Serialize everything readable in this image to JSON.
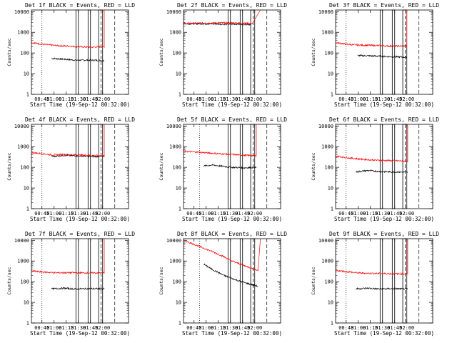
{
  "figure_title": "",
  "colors": {
    "events": "#000000",
    "lld": "#ff0000",
    "axes": "#000000",
    "background": "#ffffff"
  },
  "legend_text": "BLACK = Events, RED = LLD",
  "chart_data": [
    {
      "type": "line",
      "detector": "1f",
      "title": "Det 1f BLACK = Events, RED = LLD",
      "xlabel": "Start Time (19-Sep-12 00:32:00)",
      "ylabel": "Counts/sec",
      "xticks": [
        "00:45",
        "01:00",
        "01:15",
        "01:30",
        "01:45",
        "02:00"
      ],
      "yticks": [
        "1",
        "10",
        "100",
        "1000",
        "10000"
      ],
      "yscale": "log",
      "ylim": [
        1,
        12000
      ],
      "xlim_minutes": [
        0,
        120
      ],
      "series": [
        {
          "name": "Events",
          "color": "#000000",
          "start": 25,
          "end": 90,
          "points": [
            [
              25,
              55
            ],
            [
              40,
              50
            ],
            [
              55,
              45
            ],
            [
              70,
              45
            ],
            [
              85,
              44
            ],
            [
              90,
              42
            ]
          ]
        },
        {
          "name": "LLD",
          "color": "#ff0000",
          "start": 0,
          "end": 90,
          "spike": [
            90,
            12000
          ],
          "points": [
            [
              0,
              320
            ],
            [
              15,
              260
            ],
            [
              30,
              230
            ],
            [
              50,
              210
            ],
            [
              60,
              200
            ],
            [
              75,
              190
            ],
            [
              90,
              205
            ]
          ]
        }
      ],
      "boxes": [
        [
          55,
          58
        ],
        [
          70,
          73
        ],
        [
          83,
          88
        ]
      ],
      "dotted_lines": [
        13
      ],
      "dashed_lines": [
        86,
        103
      ]
    },
    {
      "type": "line",
      "detector": "2f",
      "title": "Det 2f BLACK = Events, RED = LLD",
      "xlabel": "Start Time (19-Sep-12 00:32:00)",
      "ylabel": "Counts/sec",
      "xticks": [
        "00:45",
        "01:00",
        "01:15",
        "01:30",
        "01:45",
        "02:00"
      ],
      "yticks": [
        "1",
        "10",
        "100",
        "1000",
        "10000"
      ],
      "yscale": "log",
      "ylim": [
        1,
        12000
      ],
      "xlim_minutes": [
        0,
        120
      ],
      "series": [
        {
          "name": "Events",
          "color": "#000000",
          "start": 0,
          "end": 83,
          "points": [
            [
              0,
              2600
            ],
            [
              25,
              2600
            ],
            [
              50,
              2500
            ],
            [
              70,
              2500
            ],
            [
              83,
              2400
            ]
          ]
        },
        {
          "name": "LLD",
          "color": "#ff0000",
          "start": 0,
          "end": 85,
          "spike": [
            95,
            12000
          ],
          "points": [
            [
              0,
              2700
            ],
            [
              25,
              2800
            ],
            [
              50,
              2900
            ],
            [
              70,
              2800
            ],
            [
              85,
              2700
            ]
          ]
        }
      ],
      "boxes": [
        [
          55,
          58
        ],
        [
          70,
          73
        ],
        [
          83,
          88
        ]
      ],
      "dotted_lines": [],
      "dashed_lines": [
        86,
        103
      ]
    },
    {
      "type": "line",
      "detector": "3f",
      "title": "Det 3f BLACK = Events, RED = LLD",
      "xlabel": "Start Time (19-Sep-12 00:32:00)",
      "ylabel": "Counts/sec",
      "xticks": [
        "00:43",
        "01:00",
        "01:15",
        "01:30",
        "01:45",
        "02:00"
      ],
      "yticks": [
        "1",
        "10",
        "100",
        "1000",
        "10000"
      ],
      "yscale": "log",
      "ylim": [
        1,
        12000
      ],
      "xlim_minutes": [
        0,
        120
      ],
      "series": [
        {
          "name": "Events",
          "color": "#000000",
          "start": 27,
          "end": 88,
          "points": [
            [
              27,
              75
            ],
            [
              45,
              72
            ],
            [
              60,
              68
            ],
            [
              75,
              65
            ],
            [
              88,
              62
            ]
          ]
        },
        {
          "name": "LLD",
          "color": "#ff0000",
          "start": 0,
          "end": 88,
          "spike": [
            88,
            12000
          ],
          "points": [
            [
              0,
              320
            ],
            [
              15,
              260
            ],
            [
              30,
              240
            ],
            [
              50,
              230
            ],
            [
              70,
              215
            ],
            [
              88,
              220
            ]
          ]
        }
      ],
      "boxes": [
        [
          55,
          58
        ],
        [
          70,
          73
        ],
        [
          83,
          88
        ]
      ],
      "dotted_lines": [
        13
      ],
      "dashed_lines": [
        86,
        103
      ]
    },
    {
      "type": "line",
      "detector": "4f",
      "title": "Det 4f BLACK = Events, RED = LLD",
      "xlabel": "Start Time (19-Sep-12 00:32:00)",
      "ylabel": "Counts/sec",
      "xticks": [
        "00:45",
        "01:00",
        "01:15",
        "01:30",
        "01:45",
        "02:00"
      ],
      "yticks": [
        "1",
        "10",
        "100",
        "1000",
        "10000"
      ],
      "yscale": "log",
      "ylim": [
        1,
        12000
      ],
      "xlim_minutes": [
        0,
        120
      ],
      "series": [
        {
          "name": "Events",
          "color": "#000000",
          "start": 25,
          "end": 90,
          "points": [
            [
              25,
              330
            ],
            [
              40,
              380
            ],
            [
              55,
              360
            ],
            [
              70,
              340
            ],
            [
              90,
              330
            ]
          ]
        },
        {
          "name": "LLD",
          "color": "#ff0000",
          "start": 0,
          "end": 90,
          "spike": [
            90,
            12000
          ],
          "points": [
            [
              0,
              520
            ],
            [
              15,
              450
            ],
            [
              25,
              400
            ],
            [
              40,
              420
            ],
            [
              55,
              400
            ],
            [
              70,
              380
            ],
            [
              90,
              360
            ]
          ]
        }
      ],
      "boxes": [
        [
          55,
          58
        ],
        [
          70,
          73
        ],
        [
          83,
          88
        ]
      ],
      "dotted_lines": [
        13
      ],
      "dashed_lines": [
        86,
        103
      ]
    },
    {
      "type": "line",
      "detector": "5f",
      "title": "Det 5f BLACK = Events, RED = LLD",
      "xlabel": "Start Time (19-Sep-12 00:32:00)",
      "ylabel": "Counts/sec",
      "xticks": [
        "00:45",
        "01:00",
        "01:15",
        "01:30",
        "01:45",
        "02:00"
      ],
      "yticks": [
        "1",
        "10",
        "100",
        "1000",
        "10000"
      ],
      "yscale": "log",
      "ylim": [
        1,
        12000
      ],
      "xlim_minutes": [
        0,
        120
      ],
      "series": [
        {
          "name": "Events",
          "color": "#000000",
          "start": 25,
          "end": 90,
          "points": [
            [
              25,
              115
            ],
            [
              35,
              130
            ],
            [
              50,
              110
            ],
            [
              60,
              100
            ],
            [
              75,
              95
            ],
            [
              90,
              100
            ]
          ]
        },
        {
          "name": "LLD",
          "color": "#ff0000",
          "start": 0,
          "end": 90,
          "spike": [
            90,
            12000
          ],
          "points": [
            [
              0,
              600
            ],
            [
              15,
              550
            ],
            [
              30,
              500
            ],
            [
              45,
              450
            ],
            [
              60,
              420
            ],
            [
              75,
              380
            ],
            [
              90,
              370
            ]
          ]
        }
      ],
      "boxes": [
        [
          55,
          58
        ],
        [
          70,
          73
        ],
        [
          83,
          88
        ]
      ],
      "dotted_lines": [
        20
      ],
      "dashed_lines": [
        86,
        103
      ]
    },
    {
      "type": "line",
      "detector": "6f",
      "title": "Det 6f BLACK = Events, RED = LLD",
      "xlabel": "Start Time (19-Sep-12 00:32:00)",
      "ylabel": "Counts/sec",
      "xticks": [
        "00:45",
        "01:00",
        "01:15",
        "01:30",
        "01:45",
        "02:00"
      ],
      "yticks": [
        "1",
        "10",
        "100",
        "1000",
        "10000"
      ],
      "yscale": "log",
      "ylim": [
        1,
        12000
      ],
      "xlim_minutes": [
        0,
        120
      ],
      "series": [
        {
          "name": "Events",
          "color": "#000000",
          "start": 25,
          "end": 89,
          "points": [
            [
              25,
              60
            ],
            [
              40,
              70
            ],
            [
              55,
              62
            ],
            [
              70,
              60
            ],
            [
              89,
              58
            ]
          ]
        },
        {
          "name": "LLD",
          "color": "#ff0000",
          "start": 0,
          "end": 89,
          "spike": [
            89,
            12000
          ],
          "points": [
            [
              0,
              350
            ],
            [
              15,
              290
            ],
            [
              30,
              250
            ],
            [
              50,
              220
            ],
            [
              70,
              210
            ],
            [
              89,
              200
            ]
          ]
        }
      ],
      "boxes": [
        [
          55,
          58
        ],
        [
          70,
          73
        ],
        [
          83,
          88
        ]
      ],
      "dotted_lines": [
        13
      ],
      "dashed_lines": [
        86,
        103
      ]
    },
    {
      "type": "line",
      "detector": "7f",
      "title": "Det 7f BLACK = Events, RED = LLD",
      "xlabel": "Start Time (19-Sep-12 00:32:00)",
      "ylabel": "Counts/sec",
      "xticks": [
        "00:45",
        "01:00",
        "01:15",
        "01:30",
        "01:45",
        "02:00"
      ],
      "yticks": [
        "1",
        "10",
        "100",
        "1000",
        "10000"
      ],
      "yscale": "log",
      "ylim": [
        1,
        12000
      ],
      "xlim_minutes": [
        0,
        120
      ],
      "series": [
        {
          "name": "Events",
          "color": "#000000",
          "start": 25,
          "end": 90,
          "points": [
            [
              25,
              45
            ],
            [
              40,
              48
            ],
            [
              55,
              44
            ],
            [
              70,
              46
            ],
            [
              90,
              45
            ]
          ]
        },
        {
          "name": "LLD",
          "color": "#ff0000",
          "start": 0,
          "end": 90,
          "spike": [
            90,
            12000
          ],
          "points": [
            [
              0,
              330
            ],
            [
              15,
              290
            ],
            [
              30,
              270
            ],
            [
              50,
              270
            ],
            [
              70,
              265
            ],
            [
              90,
              270
            ]
          ]
        }
      ],
      "boxes": [
        [
          55,
          58
        ],
        [
          70,
          73
        ],
        [
          83,
          88
        ]
      ],
      "dotted_lines": [
        13
      ],
      "dashed_lines": [
        86,
        103
      ]
    },
    {
      "type": "line",
      "detector": "8f",
      "title": "Det 8f BLACK = Events, RED = LLD",
      "xlabel": "Start Time (19-Sep-12 00:32:00)",
      "ylabel": "Counts/sec",
      "xticks": [
        "00:45",
        "01:00",
        "01:15",
        "01:30",
        "01:45",
        "02:00"
      ],
      "yticks": [
        "1",
        "10",
        "100",
        "1000",
        "10000"
      ],
      "yscale": "log",
      "ylim": [
        1,
        12000
      ],
      "xlim_minutes": [
        0,
        120
      ],
      "series": [
        {
          "name": "Events",
          "color": "#000000",
          "start": 25,
          "end": 92,
          "points": [
            [
              25,
              700
            ],
            [
              35,
              400
            ],
            [
              50,
              200
            ],
            [
              65,
              120
            ],
            [
              80,
              80
            ],
            [
              92,
              60
            ]
          ]
        },
        {
          "name": "LLD",
          "color": "#ff0000",
          "start": 0,
          "end": 92,
          "spike": [
            95,
            12000
          ],
          "points": [
            [
              0,
              10000
            ],
            [
              15,
              6000
            ],
            [
              30,
              3500
            ],
            [
              45,
              2000
            ],
            [
              60,
              1000
            ],
            [
              75,
              600
            ],
            [
              92,
              350
            ]
          ]
        }
      ],
      "boxes": [
        [
          55,
          58
        ],
        [
          70,
          73
        ],
        [
          83,
          88
        ]
      ],
      "dotted_lines": [
        20
      ],
      "dashed_lines": [
        86,
        103
      ]
    },
    {
      "type": "line",
      "detector": "9f",
      "title": "Det 9f BLACK = Events, RED = LLD",
      "xlabel": "Start Time (19-Sep-12 00:32:00)",
      "ylabel": "Counts/sec",
      "xticks": [
        "00:43",
        "01:00",
        "01:15",
        "01:30",
        "01:45",
        "02:00"
      ],
      "yticks": [
        "1",
        "10",
        "100",
        "1000",
        "10000"
      ],
      "yscale": "log",
      "ylim": [
        1,
        12000
      ],
      "xlim_minutes": [
        0,
        120
      ],
      "series": [
        {
          "name": "Events",
          "color": "#000000",
          "start": 25,
          "end": 89,
          "points": [
            [
              25,
              45
            ],
            [
              40,
              48
            ],
            [
              55,
              44
            ],
            [
              70,
              46
            ],
            [
              89,
              44
            ]
          ]
        },
        {
          "name": "LLD",
          "color": "#ff0000",
          "start": 0,
          "end": 89,
          "spike": [
            89,
            12000
          ],
          "points": [
            [
              0,
              350
            ],
            [
              15,
              300
            ],
            [
              30,
              260
            ],
            [
              50,
              250
            ],
            [
              70,
              240
            ],
            [
              89,
              240
            ]
          ]
        }
      ],
      "boxes": [
        [
          55,
          58
        ],
        [
          70,
          73
        ],
        [
          83,
          88
        ]
      ],
      "dotted_lines": [
        13
      ],
      "dashed_lines": [
        86,
        103
      ]
    }
  ]
}
